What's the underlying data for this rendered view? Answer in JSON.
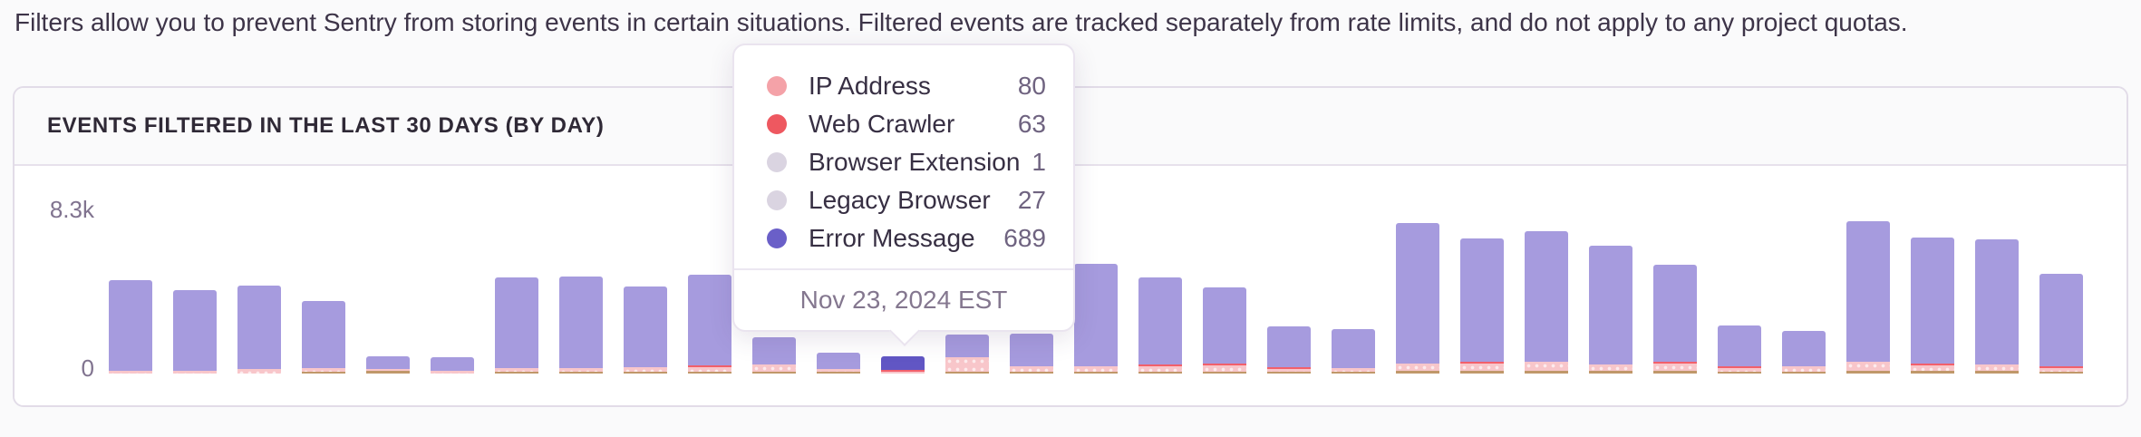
{
  "page": {
    "description": "Filters allow you to prevent Sentry from storing events in certain situations. Filtered events are tracked separately from rate limits, and do not apply to any project quotas."
  },
  "panel": {
    "title": "EVENTS FILTERED IN THE LAST 30 DAYS (BY DAY)"
  },
  "chart_data": {
    "type": "bar",
    "stacked": true,
    "title": "Events filtered in the last 30 days (by day)",
    "y_ticks": [
      "0",
      "8.3k"
    ],
    "ylim": [
      0,
      8300
    ],
    "grid": false,
    "x_tick_labels_visible": false,
    "n_bars": 31,
    "highlighted_index": 12,
    "hovered_day": "Nov 23, 2024",
    "colors": {
      "error_message": "#a69bde",
      "error_message_highlight": "#6156c4",
      "ip_address": "#f8c6ca",
      "web_crawler": "#f2606b",
      "other": "#c0986a"
    },
    "bars": [
      {
        "total": 4750,
        "ip_address": 140
      },
      {
        "total": 4250,
        "ip_address": 140
      },
      {
        "total": 4500,
        "ip_address": 230
      },
      {
        "total": 3700,
        "ip_address": 180,
        "other": 90
      },
      {
        "total": 900,
        "ip_address": 90,
        "other": 140
      },
      {
        "total": 850,
        "ip_address": 140
      },
      {
        "total": 4900,
        "ip_address": 180,
        "other": 90
      },
      {
        "total": 4950,
        "ip_address": 180,
        "other": 90
      },
      {
        "total": 4450,
        "ip_address": 230,
        "other": 90
      },
      {
        "total": 5050,
        "ip_address": 230,
        "web_crawler": 46,
        "other": 90
      },
      {
        "total": 1850,
        "ip_address": 370,
        "other": 90
      },
      {
        "total": 1050,
        "ip_address": 140,
        "other": 90
      },
      {
        "total": 860,
        "ip_address": 80,
        "web_crawler": 63,
        "browser_extension": 1,
        "legacy_browser": 27,
        "error_message": 689
      },
      {
        "total": 2000,
        "ip_address": 740,
        "other": 90
      },
      {
        "total": 2050,
        "ip_address": 280,
        "other": 90
      },
      {
        "total": 5600,
        "ip_address": 280,
        "other": 90
      },
      {
        "total": 4900,
        "ip_address": 280,
        "web_crawler": 46,
        "other": 90
      },
      {
        "total": 4400,
        "ip_address": 320,
        "web_crawler": 46,
        "other": 90
      },
      {
        "total": 2400,
        "ip_address": 140,
        "web_crawler": 92,
        "other": 90
      },
      {
        "total": 2250,
        "ip_address": 180,
        "other": 90
      },
      {
        "total": 7650,
        "ip_address": 370,
        "other": 140
      },
      {
        "total": 6900,
        "ip_address": 370,
        "web_crawler": 92,
        "other": 140
      },
      {
        "total": 7250,
        "ip_address": 460,
        "other": 140
      },
      {
        "total": 6500,
        "ip_address": 320,
        "other": 140
      },
      {
        "total": 5550,
        "ip_address": 370,
        "web_crawler": 46,
        "other": 140
      },
      {
        "total": 2450,
        "ip_address": 180,
        "web_crawler": 92,
        "other": 90
      },
      {
        "total": 2150,
        "ip_address": 280,
        "other": 90
      },
      {
        "total": 7750,
        "ip_address": 460,
        "other": 140
      },
      {
        "total": 6950,
        "ip_address": 280,
        "web_crawler": 46,
        "other": 140
      },
      {
        "total": 6850,
        "ip_address": 320,
        "other": 140
      },
      {
        "total": 5100,
        "ip_address": 180,
        "web_crawler": 46,
        "other": 90
      }
    ]
  },
  "tooltip": {
    "rows": [
      {
        "label": "IP Address",
        "value": 80,
        "color": "#f4a2a8",
        "dotted": true
      },
      {
        "label": "Web Crawler",
        "value": 63,
        "color": "#ee5860"
      },
      {
        "label": "Browser Extension",
        "value": 1,
        "color": "#dad4e1"
      },
      {
        "label": "Legacy Browser",
        "value": 27,
        "color": "#dad4e1"
      },
      {
        "label": "Error Message",
        "value": 689,
        "color": "#6a5fc8"
      }
    ],
    "date": "Nov 23, 2024 EST"
  }
}
